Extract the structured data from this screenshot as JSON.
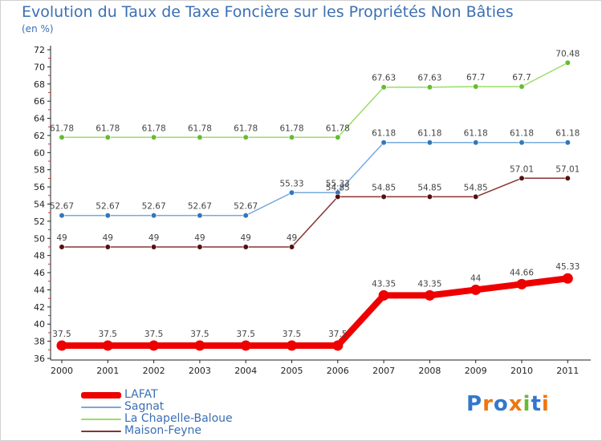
{
  "chart_data": {
    "type": "line",
    "title": "Evolution du Taux de Taxe Foncière sur les Propriétés Non Bâties",
    "ylabel": "(en %)",
    "xlabel": "",
    "categories": [
      "2000",
      "2001",
      "2002",
      "2003",
      "2004",
      "2005",
      "2006",
      "2007",
      "2008",
      "2009",
      "2010",
      "2011"
    ],
    "ylim": [
      36,
      72
    ],
    "yticks": [
      36,
      38,
      40,
      42,
      44,
      46,
      48,
      50,
      52,
      54,
      56,
      58,
      60,
      62,
      64,
      66,
      68,
      70,
      72
    ],
    "series": [
      {
        "name": "La Chapelle-Baloue",
        "color": "#99dd66",
        "marker": "#66bb33",
        "values": [
          61.78,
          61.78,
          61.78,
          61.78,
          61.78,
          61.78,
          61.78,
          67.63,
          67.63,
          67.7,
          67.7,
          70.48
        ],
        "labels": [
          "61.78",
          "61.78",
          "61.78",
          "61.78",
          "61.78",
          "61.78",
          "61.78",
          "67.63",
          "67.63",
          "67.7",
          "67.7",
          "70.48"
        ]
      },
      {
        "name": "Sagnat",
        "color": "#77aadd",
        "marker": "#3377bb",
        "values": [
          52.67,
          52.67,
          52.67,
          52.67,
          52.67,
          55.33,
          55.33,
          61.18,
          61.18,
          61.18,
          61.18,
          61.18
        ],
        "labels": [
          "52.67",
          "52.67",
          "52.67",
          "52.67",
          "52.67",
          "55.33",
          "55.33",
          "61.18",
          "61.18",
          "61.18",
          "61.18",
          "61.18"
        ]
      },
      {
        "name": "Maison-Feyne",
        "color": "#883333",
        "marker": "#551111",
        "values": [
          49,
          49,
          49,
          49,
          49,
          49,
          54.85,
          54.85,
          54.85,
          54.85,
          57.01,
          57.01
        ],
        "labels": [
          "49",
          "49",
          "49",
          "49",
          "49",
          "49",
          "54.85",
          "54.85",
          "54.85",
          "54.85",
          "57.01",
          "57.01"
        ]
      },
      {
        "name": "LAFAT",
        "color": "#ee0000",
        "marker": "#ee0000",
        "values": [
          37.5,
          37.5,
          37.5,
          37.5,
          37.5,
          37.5,
          37.5,
          43.35,
          43.35,
          44,
          44.66,
          45.33
        ],
        "labels": [
          "37.5",
          "37.5",
          "37.5",
          "37.5",
          "37.5",
          "37.5",
          "37.5",
          "43.35",
          "43.35",
          "44",
          "44.66",
          "45.33"
        ]
      }
    ],
    "legend": [
      "LAFAT",
      "Sagnat",
      "La Chapelle-Baloue",
      "Maison-Feyne"
    ],
    "grid": false
  },
  "logo": {
    "text": "Proxiti"
  }
}
